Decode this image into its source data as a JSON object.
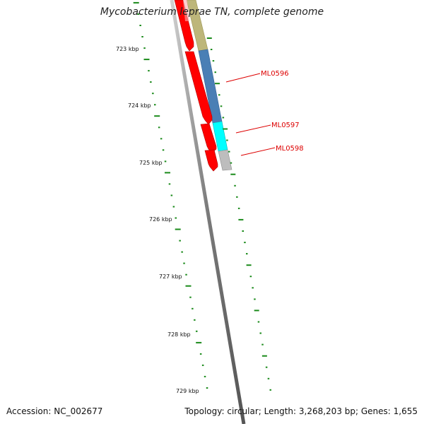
{
  "title": "Mycobacterium leprae TN, complete genome",
  "footer": {
    "accession": "Accession: NC_002677",
    "summary": "Topology: circular; Length: 3,268,203 bp; Genes: 1,655"
  },
  "ruler": {
    "labels": [
      "723 kbp",
      "724 kbp",
      "725 kbp",
      "726 kbp",
      "727 kbp",
      "728 kbp",
      "729 kbp"
    ]
  },
  "genes": [
    {
      "name": "ML0596",
      "color": "#4a7fb5"
    },
    {
      "name": "ML0597",
      "color": "#00ffff"
    },
    {
      "name": "ML0598",
      "color": "#bdbdbd"
    }
  ],
  "colors": {
    "reverse_strand": "#ff0000",
    "forward_other": "#bdb67a",
    "backbone": "#7a7a7a",
    "gc_skew": "#1a8a1a"
  }
}
